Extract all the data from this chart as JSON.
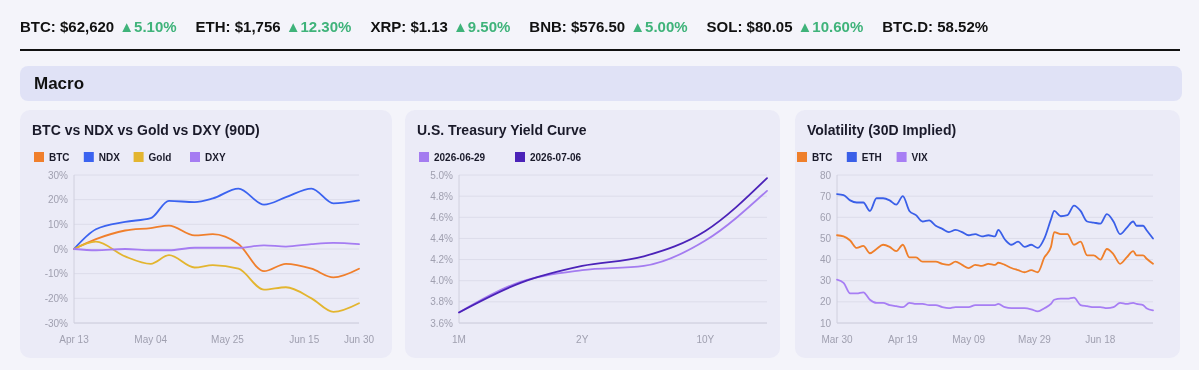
{
  "chart_data": [
    {
      "type": "other",
      "title": "Macro",
      "annotations": [
        "BTC: $62,620",
        "▲5.10%",
        "ETH: $1,756",
        "▲12.30%",
        "XRP: $1.13",
        "▲9.50%",
        "BNB: $576.50",
        "▲5.00%",
        "SOL: $80.05",
        "▲10.60%",
        "BTC.D: 58.52%"
      ]
    },
    {
      "type": "line",
      "title": "BTC vs NDX vs Gold vs DXY (90D)",
      "legend": "top left",
      "grid": "y",
      "x": [
        "--04-13",
        "--04-19",
        "--04-27",
        "--05-04",
        "--05-09",
        "--05-16",
        "--05-21",
        "--05-28",
        "--06-04",
        "--06-10",
        "--06-17",
        "--06-23",
        "--06-30"
      ],
      "xlim": [
        "--04-13",
        "--06-30"
      ],
      "xticks": [
        {
          "value": "--04-13",
          "label": "Apr 13"
        },
        {
          "value": "--05-04",
          "label": "May 04"
        },
        {
          "value": "--05-25",
          "label": "May 25"
        },
        {
          "value": "--06-15",
          "label": "Jun 15"
        },
        {
          "value": "--06-30",
          "label": "Jun 30"
        }
      ],
      "ylim": [
        -30,
        30
      ],
      "yticks": [
        {
          "value": -30,
          "label": "-30%"
        },
        {
          "value": -20,
          "label": "-20%"
        },
        {
          "value": -10,
          "label": "-10%"
        },
        {
          "value": 0,
          "label": "0%"
        },
        {
          "value": 10,
          "label": "10%"
        },
        {
          "value": 20,
          "label": "20%"
        },
        {
          "value": 30,
          "label": "30%"
        }
      ],
      "series": [
        {
          "name": "BTC",
          "color": "#f07f2c",
          "values": [
            0,
            4,
            7.5,
            8.5,
            9.5,
            5.5,
            6,
            2,
            -9,
            -6,
            -8,
            -11.5,
            -8
          ]
        },
        {
          "name": "NDX",
          "color": "#3b63f0",
          "values": [
            0,
            8,
            11,
            12.5,
            19.5,
            19,
            20.5,
            24.5,
            18,
            21,
            24.5,
            18.5,
            19.7
          ]
        },
        {
          "name": "Gold",
          "color": "#e3b52f",
          "values": [
            0,
            3,
            -3,
            -6,
            -2.5,
            -7.5,
            -6.5,
            -8,
            -16.5,
            -15.5,
            -20,
            -25.5,
            -22
          ]
        },
        {
          "name": "DXY",
          "color": "#a57cf2",
          "values": [
            0,
            -0.5,
            0,
            -0.5,
            -0.5,
            0.5,
            0.5,
            0.5,
            1.5,
            1,
            2,
            2.5,
            2
          ]
        }
      ]
    },
    {
      "type": "line",
      "title": "U.S. Treasury Yield Curve",
      "legend": "top left",
      "grid": "y",
      "categories": [
        "1M",
        null,
        "2Y",
        null,
        "10Y",
        null
      ],
      "ylim": [
        3.6,
        5.0
      ],
      "yticks": [
        {
          "value": 3.6,
          "label": "3.6%"
        },
        {
          "value": 3.8,
          "label": "3.8%"
        },
        {
          "value": 4.0,
          "label": "4.0%"
        },
        {
          "value": 4.2,
          "label": "4.2%"
        },
        {
          "value": 4.4,
          "label": "4.4%"
        },
        {
          "value": 4.6,
          "label": "4.6%"
        },
        {
          "value": 4.8,
          "label": "4.8%"
        },
        {
          "value": 5.0,
          "label": "5.0%"
        }
      ],
      "series": [
        {
          "name": "2026-06-29",
          "color": "#a47cf0",
          "values": [
            3.7,
            3.99,
            4.1,
            4.14,
            4.38,
            4.85
          ]
        },
        {
          "name": "2026-07-06",
          "color": "#4b22b8",
          "values": [
            3.7,
            3.98,
            4.14,
            4.23,
            4.47,
            4.97
          ]
        }
      ]
    },
    {
      "type": "line",
      "title": "Volatility (30D Implied)",
      "legend": "top left",
      "grid": "y",
      "x": [
        "--03-30",
        "--04-01",
        "--04-03",
        "--04-05",
        "--04-07",
        "--04-09",
        "--04-11",
        "--04-13",
        "--04-15",
        "--04-17",
        "--04-19",
        "--04-21",
        "--04-23",
        "--04-25",
        "--04-27",
        "--04-29",
        "--05-01",
        "--05-03",
        "--05-05",
        "--05-07",
        "--05-09",
        "--05-11",
        "--05-13",
        "--05-15",
        "--05-17",
        "--05-18",
        "--05-20",
        "--05-22",
        "--05-24",
        "--05-26",
        "--05-28",
        "--05-30",
        "--06-01",
        "--06-03",
        "--06-04",
        "--06-06",
        "--06-08",
        "--06-10",
        "--06-12",
        "--06-14",
        "--06-16",
        "--06-18",
        "--06-20",
        "--06-22",
        "--06-24",
        "--06-26",
        "--06-28",
        "--06-29",
        "--07-01",
        "--07-02",
        "--07-04"
      ],
      "xlim": [
        "--03-30",
        "--07-04"
      ],
      "xticks": [
        {
          "value": "--03-30",
          "label": "Mar 30"
        },
        {
          "value": "--04-19",
          "label": "Apr 19"
        },
        {
          "value": "--05-09",
          "label": "May 09"
        },
        {
          "value": "--05-29",
          "label": "May 29"
        },
        {
          "value": "--06-18",
          "label": "Jun 18"
        }
      ],
      "ylim": [
        10,
        80
      ],
      "yticks": [
        10,
        20,
        30,
        40,
        50,
        60,
        70,
        80
      ],
      "series": [
        {
          "name": "BTC",
          "color": "#ef7f2a",
          "values": [
            51.5,
            51,
            49,
            45.5,
            46.5,
            43,
            45,
            47,
            46,
            44,
            47,
            41,
            41,
            39,
            39,
            39,
            38,
            37.5,
            39,
            37.5,
            36,
            37.5,
            37,
            38,
            37.5,
            38.5,
            37.5,
            36,
            35,
            34,
            35,
            34,
            41,
            46,
            53,
            52,
            52,
            47,
            48.5,
            42,
            42,
            40,
            45,
            42.5,
            38,
            41,
            44,
            42,
            42,
            40.5,
            38
          ]
        },
        {
          "name": "ETH",
          "color": "#3a5fe8",
          "values": [
            71,
            70.5,
            68,
            67,
            67,
            63,
            69,
            69,
            68,
            66,
            70,
            63,
            61,
            58,
            58.5,
            56,
            54.5,
            53,
            54,
            53,
            51.5,
            52,
            51,
            51.5,
            51,
            54,
            49.5,
            47,
            48.5,
            46,
            47,
            45.5,
            50,
            59,
            63,
            60.5,
            61,
            65.5,
            63,
            58,
            57.5,
            57,
            61.5,
            58,
            52,
            55,
            58,
            56,
            56,
            54,
            50
          ]
        },
        {
          "name": "VIX",
          "color": "#a77ef4",
          "values": [
            30.5,
            29,
            24,
            24,
            24.5,
            21,
            19.5,
            19.5,
            18.5,
            18,
            17.5,
            19.5,
            19,
            19,
            18.5,
            18.5,
            17.5,
            17,
            17.5,
            17.5,
            17.5,
            18.5,
            18.5,
            18.5,
            18.5,
            19,
            17.5,
            17,
            17,
            17,
            16.5,
            15.5,
            17,
            19,
            21,
            21.5,
            21.5,
            22,
            18.5,
            18,
            17.5,
            17.5,
            17,
            17.5,
            19.5,
            19,
            19.5,
            19,
            18.5,
            17,
            16
          ]
        }
      ]
    }
  ]
}
